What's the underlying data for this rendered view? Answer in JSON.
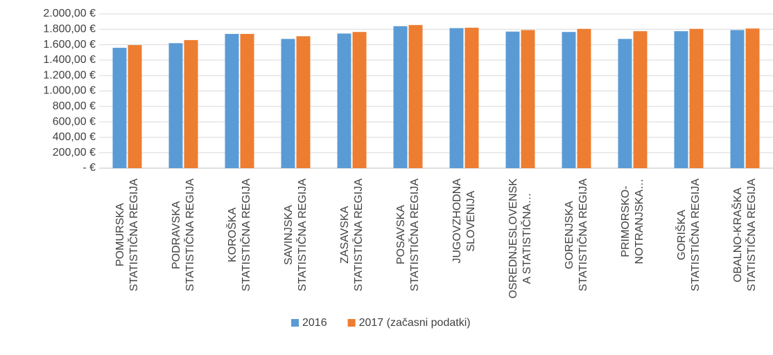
{
  "chart_data": {
    "type": "bar",
    "categories": [
      "POMURSKA\nSTATISTIČNA REGIJA",
      "PODRAVSKA\nSTATISTIČNA REGIJA",
      "KOROŠKA\nSTATISTIČNA REGIJA",
      "SAVINJSKA\nSTATISTIČNA REGIJA",
      "ZASAVSKA\nSTATISTIČNA REGIJA",
      "POSAVSKA\nSTATISTIČNA REGIJA",
      "JUGOVZHODNA\nSLOVENIJA",
      "OSREDNJESLOVENSK\nA STATISTIČNA…",
      "GORENJSKA\nSTATISTIČNA REGIJA",
      "PRIMORSKO-\nNOTRANJSKA…",
      "GORIŠKA\nSTATISTIČNA REGIJA",
      "OBALNO-KRAŠKA\nSTATISTIČNA REGIJA"
    ],
    "series": [
      {
        "name": "2016",
        "color": "#5b9bd5",
        "values": [
          1560,
          1620,
          1740,
          1675,
          1745,
          1840,
          1815,
          1770,
          1765,
          1675,
          1775,
          1790
        ]
      },
      {
        "name": "2017 (začasni podatki)",
        "color": "#ed7d31",
        "values": [
          1595,
          1660,
          1740,
          1710,
          1765,
          1855,
          1820,
          1790,
          1805,
          1775,
          1805,
          1810
        ]
      }
    ],
    "ylim": [
      0,
      2000
    ],
    "yticks": [
      {
        "value": 0,
        "label": "-   €"
      },
      {
        "value": 200,
        "label": "200,00 €"
      },
      {
        "value": 400,
        "label": "400,00 €"
      },
      {
        "value": 600,
        "label": "600,00 €"
      },
      {
        "value": 800,
        "label": "800,00 €"
      },
      {
        "value": 1000,
        "label": "1.000,00 €"
      },
      {
        "value": 1200,
        "label": "1.200,00 €"
      },
      {
        "value": 1400,
        "label": "1.400,00 €"
      },
      {
        "value": 1600,
        "label": "1.600,00 €"
      },
      {
        "value": 1800,
        "label": "1.800,00 €"
      },
      {
        "value": 2000,
        "label": "2.000,00 €"
      }
    ],
    "grid": true,
    "legend": "bottom"
  }
}
